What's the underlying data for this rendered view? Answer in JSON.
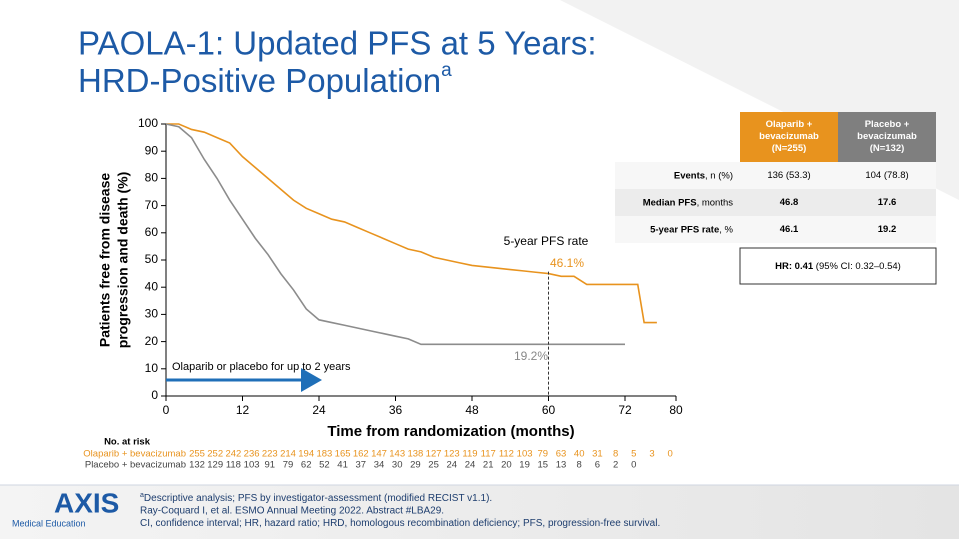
{
  "slide_title": {
    "line1": "PAOLA-1: Updated PFS at 5 Years:",
    "line2": "HRD-Positive Population",
    "superscript": "a"
  },
  "chart_data": {
    "type": "line",
    "x_label": "Time from randomization (months)",
    "y_label": [
      "Patients free from disease",
      "progression and death (%)"
    ],
    "xlim": [
      0,
      80
    ],
    "xticks": [
      0,
      12,
      24,
      36,
      48,
      60,
      72,
      80
    ],
    "ylim": [
      0,
      100
    ],
    "yticks": [
      0,
      10,
      20,
      30,
      40,
      50,
      60,
      70,
      80,
      90,
      100
    ],
    "series": [
      {
        "name": "Olaparib + bevacizumab",
        "color": "#e8931e",
        "x": [
          0,
          2,
          4,
          6,
          8,
          10,
          12,
          14,
          16,
          18,
          20,
          22,
          24,
          26,
          28,
          30,
          32,
          34,
          36,
          38,
          40,
          42,
          44,
          46,
          48,
          50,
          52,
          54,
          56,
          58,
          60,
          62,
          64,
          66,
          70,
          74,
          75,
          77
        ],
        "values": [
          100,
          100,
          98,
          97,
          95,
          93,
          88,
          84,
          80,
          76,
          72,
          69,
          67,
          65,
          64,
          62,
          60,
          58,
          56,
          54,
          53,
          51,
          50,
          49,
          48,
          47.5,
          47,
          46.5,
          46,
          45.5,
          45,
          44,
          44,
          41,
          41,
          41,
          27,
          27
        ]
      },
      {
        "name": "Placebo + bevacizumab",
        "color": "#8c8c8c",
        "x": [
          0,
          2,
          4,
          6,
          8,
          10,
          12,
          14,
          16,
          18,
          20,
          22,
          24,
          26,
          28,
          30,
          32,
          34,
          36,
          38,
          40,
          50,
          60,
          68,
          72
        ],
        "values": [
          100,
          99,
          95,
          87,
          80,
          72,
          65,
          58,
          52,
          45,
          39,
          32,
          28,
          27,
          26,
          25,
          24,
          23,
          22,
          21,
          19,
          19,
          19,
          19,
          19
        ]
      }
    ],
    "annotations": {
      "pfs_rate": "5-year PFS rate",
      "olaparib_rate": "46.1%",
      "placebo_rate": "19.2%",
      "treatment": "Olaparib or placebo for up to 2 years"
    },
    "risk_table": {
      "title": "No. at risk",
      "rows": [
        {
          "name": "Olaparib + bevacizumab",
          "values": [
            255,
            252,
            242,
            236,
            223,
            214,
            194,
            183,
            165,
            162,
            147,
            143,
            138,
            127,
            123,
            119,
            117,
            112,
            103,
            79,
            63,
            40,
            31,
            8,
            5,
            3,
            0
          ]
        },
        {
          "name": "Placebo + bevacizumab",
          "values": [
            132,
            129,
            118,
            103,
            91,
            79,
            62,
            52,
            41,
            37,
            34,
            30,
            29,
            25,
            24,
            24,
            21,
            20,
            19,
            15,
            13,
            8,
            6,
            2,
            0
          ]
        }
      ]
    }
  },
  "table": {
    "headers": [
      "Olaparib + bevacizumab (N=255)",
      "Placebo + bevacizumab (N=132)"
    ],
    "rows": [
      {
        "label": "Events",
        "unit": ", n (%)",
        "values": [
          "136 (53.3)",
          "104 (78.8)"
        ]
      },
      {
        "label": "Median PFS",
        "unit": ", months",
        "values": [
          "46.8",
          "17.6"
        ]
      },
      {
        "label": "5-year PFS rate",
        "unit": ", %",
        "values": [
          "46.1",
          "19.2"
        ]
      }
    ],
    "hr": {
      "bold": "HR: 0.41",
      "rest": " (95% CI: 0.32–0.54)"
    }
  },
  "footer": {
    "logo": "AXIS",
    "logo_sub": "Medical Education",
    "notes": [
      {
        "mark": "a",
        "text": "Descriptive analysis; PFS by investigator-assessment (modified RECIST v1.1)."
      },
      {
        "text": "Ray-Coquard I, et al. ESMO Annual Meeting 2022. Abstract #LBA29."
      },
      {
        "text": "CI, confidence interval; HR, hazard ratio; HRD, homologous recombination deficiency; PFS, progression-free survival."
      }
    ]
  }
}
